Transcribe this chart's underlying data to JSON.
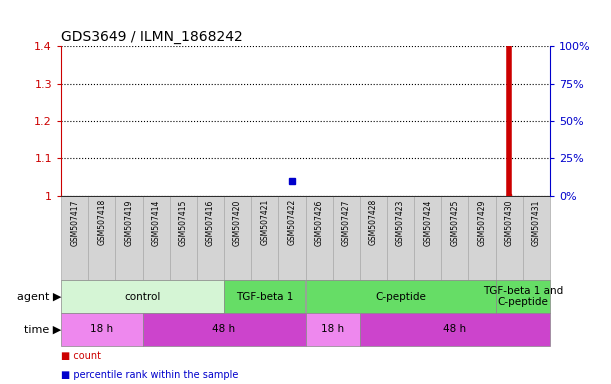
{
  "title": "GDS3649 / ILMN_1868242",
  "samples": [
    "GSM507417",
    "GSM507418",
    "GSM507419",
    "GSM507414",
    "GSM507415",
    "GSM507416",
    "GSM507420",
    "GSM507421",
    "GSM507422",
    "GSM507426",
    "GSM507427",
    "GSM507428",
    "GSM507423",
    "GSM507424",
    "GSM507425",
    "GSM507429",
    "GSM507430",
    "GSM507431"
  ],
  "ylim_left": [
    1.0,
    1.4
  ],
  "ylim_right": [
    0,
    100
  ],
  "yticks_left": [
    1.0,
    1.1,
    1.2,
    1.3,
    1.4
  ],
  "yticks_right": [
    0,
    25,
    50,
    75,
    100
  ],
  "red_bar_index": 16,
  "blue_dot_index": 8,
  "blue_dot_percentile": 5,
  "agent_groups": [
    {
      "label": "control",
      "start": 0,
      "end": 6,
      "color": "#d5f5d5"
    },
    {
      "label": "TGF-beta 1",
      "start": 6,
      "end": 9,
      "color": "#66dd66"
    },
    {
      "label": "C-peptide",
      "start": 9,
      "end": 16,
      "color": "#66dd66"
    },
    {
      "label": "TGF-beta 1 and\nC-peptide",
      "start": 16,
      "end": 18,
      "color": "#66dd66"
    }
  ],
  "time_groups": [
    {
      "label": "18 h",
      "start": 0,
      "end": 3,
      "color": "#ee88ee"
    },
    {
      "label": "48 h",
      "start": 3,
      "end": 9,
      "color": "#cc44cc"
    },
    {
      "label": "18 h",
      "start": 9,
      "end": 11,
      "color": "#ee88ee"
    },
    {
      "label": "48 h",
      "start": 11,
      "end": 18,
      "color": "#cc44cc"
    }
  ],
  "bg_color": "#ffffff",
  "left_axis_color": "#cc0000",
  "right_axis_color": "#0000cc",
  "bar_color": "#cc0000",
  "blue_marker_color": "#0000cc",
  "title_fontsize": 10,
  "label_fontsize": 8,
  "sample_fontsize": 5.5,
  "group_fontsize": 7.5
}
